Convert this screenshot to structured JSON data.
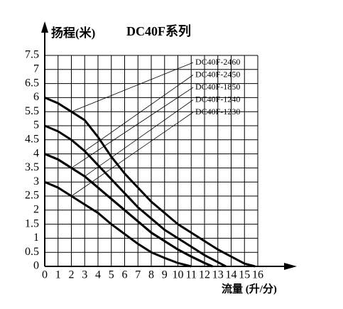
{
  "chart_data": {
    "type": "line",
    "title": "DC40F系列",
    "y_label": "扬程(米)",
    "x_label": "流量 (升/分)",
    "xlim": [
      0,
      16
    ],
    "ylim": [
      0,
      7.5
    ],
    "xticks": [
      0,
      1,
      2,
      3,
      4,
      5,
      6,
      7,
      8,
      9,
      10,
      11,
      12,
      13,
      14,
      15,
      16
    ],
    "yticks": [
      0,
      0.5,
      1,
      1.5,
      2,
      2.5,
      3,
      3.5,
      4,
      4.5,
      5,
      5.5,
      6,
      6.5,
      7,
      7.5
    ],
    "grid": true,
    "series": [
      {
        "name": "DC40F-2460",
        "color": "#000000",
        "x": [
          0,
          1,
          2,
          3,
          4,
          5,
          6,
          7,
          8,
          9,
          10,
          11,
          12,
          13,
          14,
          15,
          15.8
        ],
        "values": [
          6,
          5.8,
          5.5,
          5.2,
          4.6,
          3.9,
          3.3,
          2.8,
          2.3,
          1.9,
          1.5,
          1.2,
          0.9,
          0.6,
          0.35,
          0.1,
          0
        ]
      },
      {
        "name": "DC40F-2450",
        "color": "#000000",
        "x": [
          0,
          1,
          2,
          3,
          4,
          5,
          6,
          7,
          8,
          9,
          10,
          11,
          12,
          13,
          13.6
        ],
        "values": [
          5,
          4.8,
          4.5,
          4.1,
          3.6,
          3.1,
          2.6,
          2.1,
          1.7,
          1.3,
          1.0,
          0.7,
          0.4,
          0.15,
          0
        ]
      },
      {
        "name": "DC40F-1850",
        "color": "#000000",
        "x": [
          0,
          1,
          2,
          3,
          4,
          5,
          6,
          7,
          8,
          9,
          10,
          11,
          12,
          12.6
        ],
        "values": [
          4,
          3.8,
          3.5,
          3.2,
          2.8,
          2.4,
          2.0,
          1.6,
          1.2,
          0.9,
          0.6,
          0.35,
          0.12,
          0
        ]
      },
      {
        "name": "DC40F-1240",
        "color": "#000000",
        "x": [
          0,
          1,
          2,
          3,
          4,
          5,
          6,
          7,
          8,
          9,
          10,
          11,
          12,
          12.6
        ],
        "values": [
          4,
          3.8,
          3.5,
          3.2,
          2.8,
          2.4,
          2.0,
          1.6,
          1.2,
          0.9,
          0.6,
          0.35,
          0.12,
          0
        ]
      },
      {
        "name": "DC40F-1230",
        "color": "#000000",
        "x": [
          0,
          1,
          2,
          3,
          4,
          5,
          6,
          7,
          8,
          9,
          10,
          11
        ],
        "values": [
          3,
          2.8,
          2.5,
          2.2,
          1.9,
          1.5,
          1.15,
          0.8,
          0.5,
          0.3,
          0.12,
          0
        ]
      }
    ]
  }
}
